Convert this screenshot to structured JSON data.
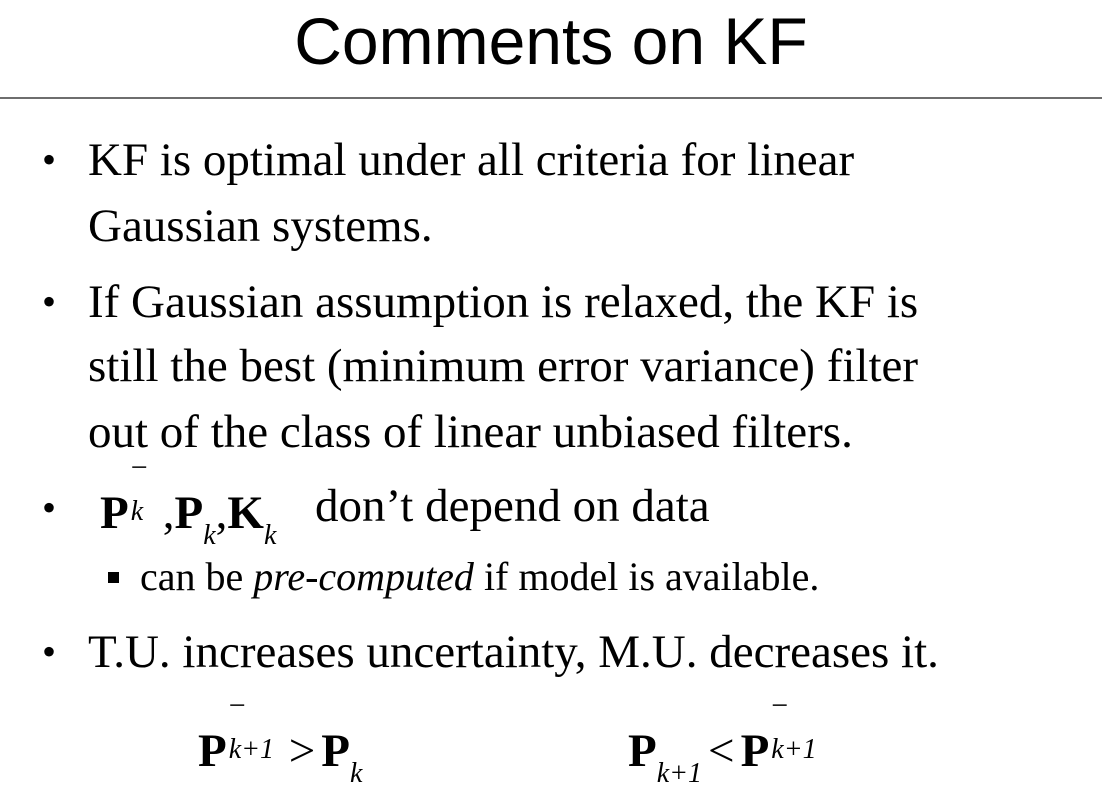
{
  "slide": {
    "title": "Comments on KF"
  },
  "bullets": [
    {
      "lines": [
        "KF is optimal under all criteria for linear",
        "Gaussian systems."
      ]
    },
    {
      "lines": [
        "If Gaussian assumption is relaxed, the KF is",
        "still the best (minimum error variance) filter",
        "out of the class of linear unbiased filters."
      ]
    },
    {
      "math": {
        "p": "P",
        "minus": "−",
        "k": "k",
        "comma": ",",
        "k_symbol": "K"
      },
      "text_after": "don’t depend on data",
      "sub_bullet": {
        "before": "can be ",
        "italic": "pre-computed",
        "after": " if model is available."
      }
    },
    {
      "lines": [
        "T.U. increases uncertainty, M.U. decreases it."
      ]
    }
  ],
  "inequalities": {
    "left": {
      "lhs": "P",
      "lhs_sup": "−",
      "lhs_sub": "k+1",
      "op": ">",
      "rhs": "P",
      "rhs_sub": "k"
    },
    "right": {
      "lhs": "P",
      "lhs_sub": "k+1",
      "op": "<",
      "rhs": "P",
      "rhs_sup": "−",
      "rhs_sub": "k+1"
    }
  }
}
